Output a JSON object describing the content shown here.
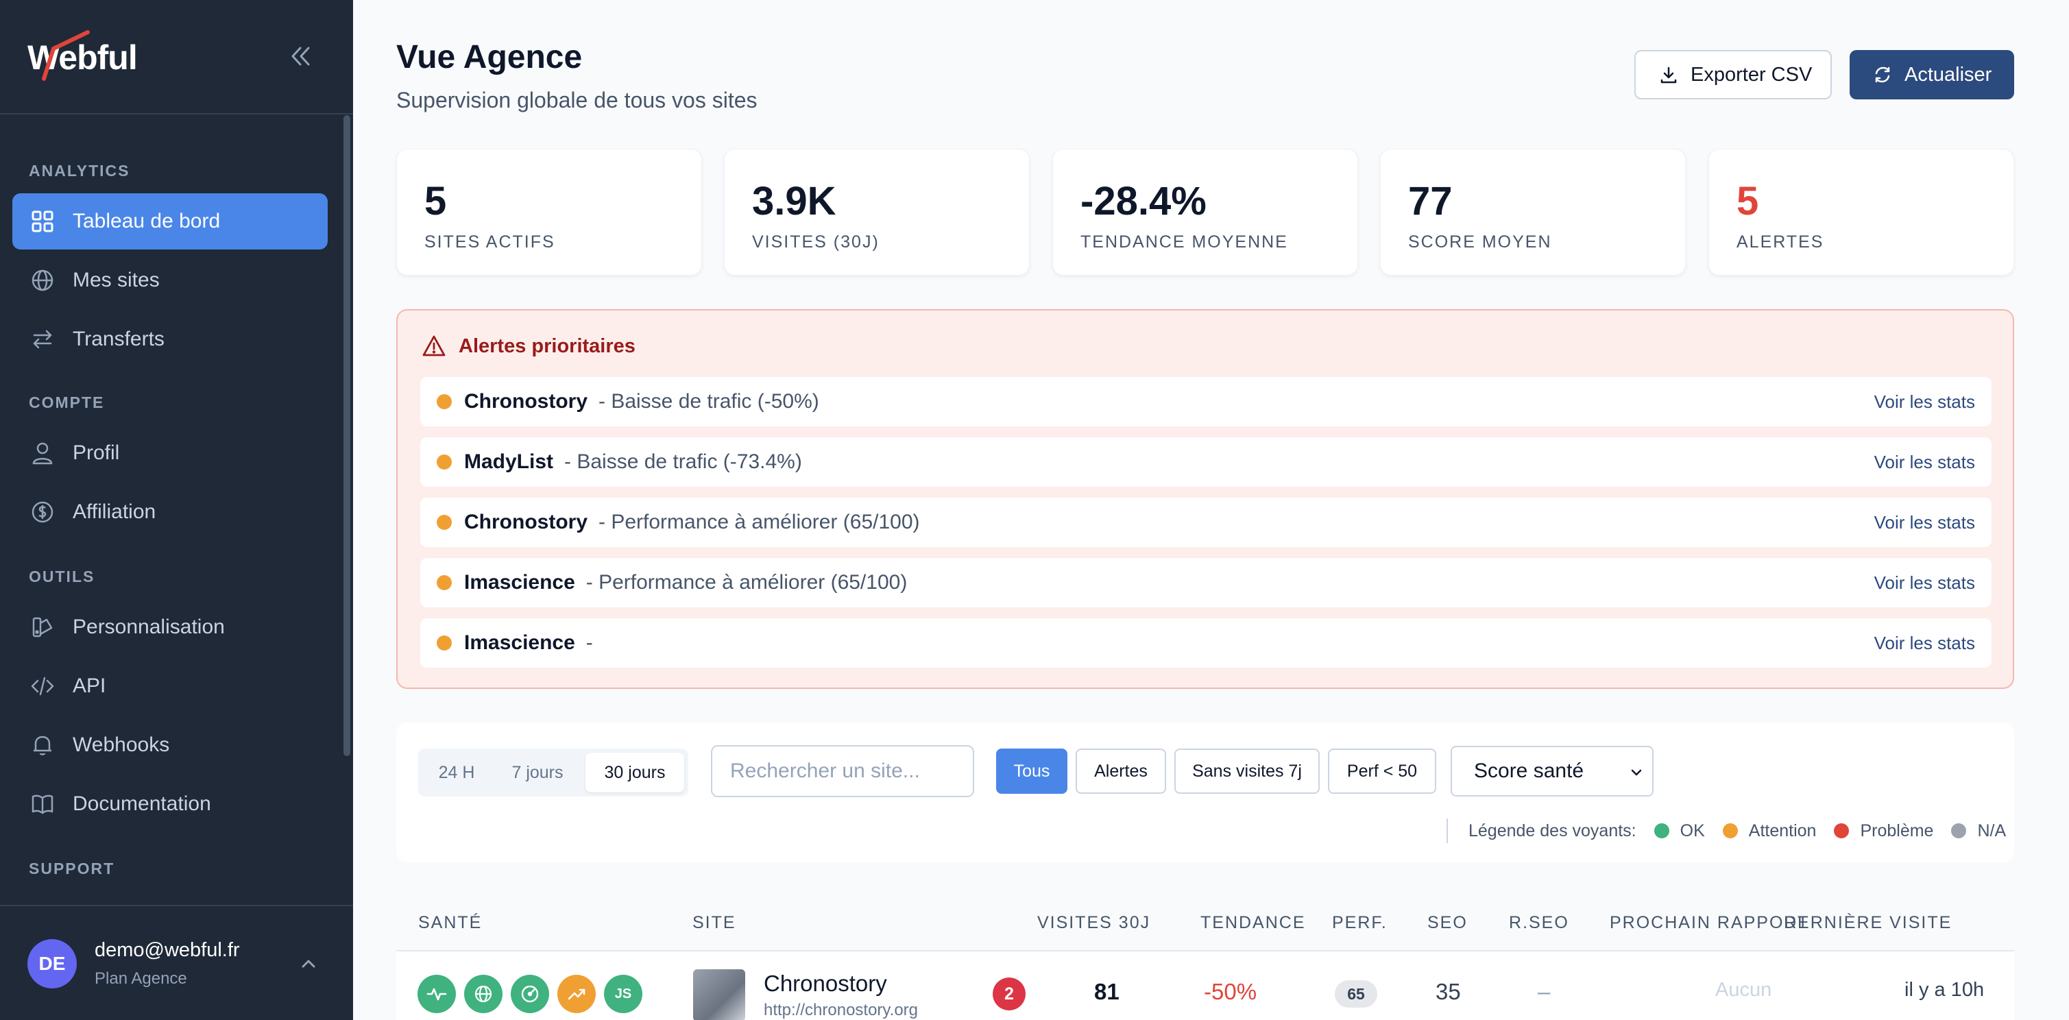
{
  "brand": {
    "name": "Webful"
  },
  "sidebar": {
    "sections": [
      "ANALYTICS",
      "COMPTE",
      "OUTILS",
      "SUPPORT"
    ],
    "items": [
      {
        "label": "Tableau de bord",
        "icon": "grid-icon"
      },
      {
        "label": "Mes sites",
        "icon": "globe-icon"
      },
      {
        "label": "Transferts",
        "icon": "arrows-icon"
      },
      {
        "label": "Profil",
        "icon": "user-icon"
      },
      {
        "label": "Affiliation",
        "icon": "dollar-icon"
      },
      {
        "label": "Personnalisation",
        "icon": "palette-icon"
      },
      {
        "label": "API",
        "icon": "code-icon"
      },
      {
        "label": "Webhooks",
        "icon": "bell-icon"
      },
      {
        "label": "Documentation",
        "icon": "book-icon"
      }
    ],
    "active_item": "Tableau de bord",
    "user": {
      "initials": "DE",
      "email": "demo@webful.fr",
      "plan": "Plan Agence"
    }
  },
  "header": {
    "title": "Vue Agence",
    "subtitle": "Supervision globale de tous vos sites",
    "export_label": "Exporter CSV",
    "refresh_label": "Actualiser"
  },
  "stats": [
    {
      "value": "5",
      "label": "SITES ACTIFS"
    },
    {
      "value": "3.9K",
      "label": "VISITES (30J)"
    },
    {
      "value": "-28.4%",
      "label": "TENDANCE MOYENNE"
    },
    {
      "value": "77",
      "label": "SCORE MOYEN"
    },
    {
      "value": "5",
      "label": "ALERTES"
    }
  ],
  "alerts": {
    "title": "Alertes prioritaires",
    "link_label": "Voir les stats",
    "items": [
      {
        "site": "Chronostory",
        "message": "- Baisse de trafic (-50%)"
      },
      {
        "site": "MadyList",
        "message": "- Baisse de trafic (-73.4%)"
      },
      {
        "site": "Chronostory",
        "message": "- Performance à améliorer (65/100)"
      },
      {
        "site": "Imascience",
        "message": "- Performance à améliorer (65/100)"
      },
      {
        "site": "Imascience",
        "message": "-"
      }
    ]
  },
  "filters": {
    "periods": [
      "24 H",
      "7 jours",
      "30 jours"
    ],
    "selected_period": "30 jours",
    "search_placeholder": "Rechercher un site...",
    "chips": [
      "Tous",
      "Alertes",
      "Sans visites 7j",
      "Perf < 50"
    ],
    "selected_chip": "Tous",
    "sort_value": "Score santé",
    "legend": {
      "title": "Légende des voyants:",
      "items": [
        {
          "label": "OK",
          "color": "#3fb27f"
        },
        {
          "label": "Attention",
          "color": "#f0a033"
        },
        {
          "label": "Problème",
          "color": "#e0453a"
        },
        {
          "label": "N/A",
          "color": "#9ca3af"
        }
      ]
    }
  },
  "table": {
    "columns": [
      "SANTÉ",
      "SITE",
      "VISITES 30J",
      "TENDANCE",
      "PERF.",
      "SEO",
      "R.SEO",
      "PROCHAIN RAPPORT",
      "DERNIÈRE VISITE"
    ],
    "rows": [
      {
        "health_icons": [
          "activity-icon",
          "globe-icon",
          "gauge-icon",
          "trend-up-icon",
          "js-icon"
        ],
        "js_label": "JS",
        "site": "Chronostory",
        "url": "http://chronostory.org",
        "alert_count": "2",
        "visits": "81",
        "trend": "-50%",
        "perf": "65",
        "seo": "35",
        "rseo": "–",
        "next_report": "Aucun",
        "last_visit": "il y a 10h"
      }
    ]
  },
  "colors": {
    "sidebar_bg": "#1f2937",
    "accent": "#4a86e8",
    "primary_button": "#2b4a7e",
    "alert_red": "#e0453a",
    "warning": "#f0a033",
    "ok": "#3fb27f"
  }
}
